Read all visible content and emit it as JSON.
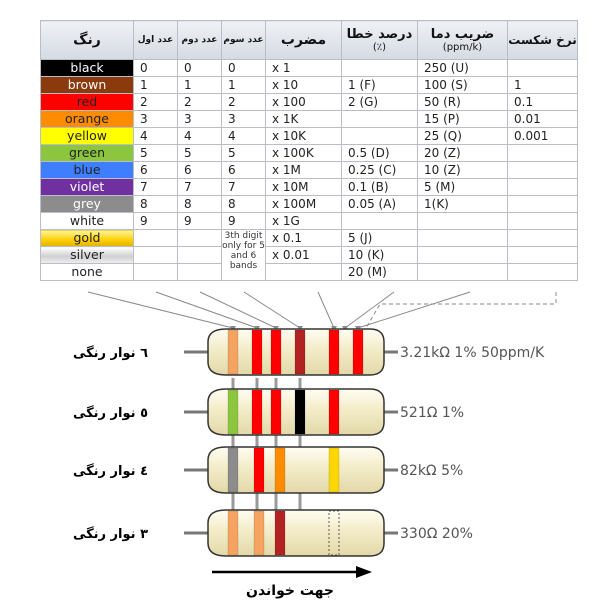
{
  "table": {
    "headers": {
      "color": "رنگ",
      "digit1": "عدد اول",
      "digit2": "عدد دوم",
      "digit3": "عدد سوم",
      "multiplier": "مضرب",
      "tolerance": "درصد خطا",
      "tolerance_unit": "(٪)",
      "tempco": "ضریب دما",
      "tempco_unit": "(ppm/k)",
      "failrate": "نرخ شکست"
    },
    "rows": [
      {
        "name": "black",
        "bg": "#000000",
        "fg": "#ffffff",
        "d1": "0",
        "d2": "0",
        "d3": "0",
        "mult": "x 1",
        "tol": "",
        "temp": "250 (U)",
        "fail": ""
      },
      {
        "name": "brown",
        "bg": "#8b3a0e",
        "fg": "#ffffff",
        "d1": "1",
        "d2": "1",
        "d3": "1",
        "mult": "x 10",
        "tol": "1 (F)",
        "temp": "100 (S)",
        "fail": "1"
      },
      {
        "name": "red",
        "bg": "#ff0000",
        "fg": "#222222",
        "d1": "2",
        "d2": "2",
        "d3": "2",
        "mult": "x 100",
        "tol": "2 (G)",
        "temp": "50 (R)",
        "fail": "0.1"
      },
      {
        "name": "orange",
        "bg": "#ff8c00",
        "fg": "#222222",
        "d1": "3",
        "d2": "3",
        "d3": "3",
        "mult": "x 1K",
        "tol": "",
        "temp": "15 (P)",
        "fail": "0.01"
      },
      {
        "name": "yellow",
        "bg": "#ffff00",
        "fg": "#222222",
        "d1": "4",
        "d2": "4",
        "d3": "4",
        "mult": "x 10K",
        "tol": "",
        "temp": "25 (Q)",
        "fail": "0.001"
      },
      {
        "name": "green",
        "bg": "#8cc63f",
        "fg": "#222222",
        "d1": "5",
        "d2": "5",
        "d3": "5",
        "mult": "x 100K",
        "tol": "0.5 (D)",
        "temp": "20 (Z)",
        "fail": ""
      },
      {
        "name": "blue",
        "bg": "#3f7fff",
        "fg": "#222222",
        "d1": "6",
        "d2": "6",
        "d3": "6",
        "mult": "x 1M",
        "tol": "0.25 (C)",
        "temp": "10 (Z)",
        "fail": ""
      },
      {
        "name": "violet",
        "bg": "#7030a0",
        "fg": "#ffffff",
        "d1": "7",
        "d2": "7",
        "d3": "7",
        "mult": "x 10M",
        "tol": "0.1 (B)",
        "temp": "5 (M)",
        "fail": ""
      },
      {
        "name": "grey",
        "bg": "#8c8c8c",
        "fg": "#ffffff",
        "d1": "8",
        "d2": "8",
        "d3": "8",
        "mult": "x 100M",
        "tol": "0.05 (A)",
        "temp": "1(K)",
        "fail": ""
      },
      {
        "name": "white",
        "bg": "#ffffff",
        "fg": "#222222",
        "d1": "9",
        "d2": "9",
        "d3": "9",
        "mult": "x 1G",
        "tol": "",
        "temp": "",
        "fail": ""
      },
      {
        "name": "gold",
        "bg": "#ffd700",
        "fg": "#222222",
        "d1": "",
        "d2": "",
        "d3": "",
        "mult": "x 0.1",
        "tol": "5 (J)",
        "temp": "",
        "fail": ""
      },
      {
        "name": "silver",
        "bg": "#dcdcdc",
        "fg": "#222222",
        "d1": "",
        "d2": "",
        "d3": "",
        "mult": "x 0.01",
        "tol": "10 (K)",
        "temp": "",
        "fail": ""
      },
      {
        "name": "none",
        "bg": "#ffffff",
        "fg": "#222222",
        "d1": "",
        "d2": "",
        "d3": "",
        "mult": "",
        "tol": "20 (M)",
        "temp": "",
        "fail": ""
      }
    ],
    "digit3_note": "3th digit only for 5 and 6 bands"
  },
  "resistors": [
    {
      "label": "٦ نوار رنگی",
      "value": "3.21kΩ 1% 50ppm/K",
      "bands": [
        "#f4a460",
        "#ff0000",
        "#ff0000",
        "#b22222",
        "#ff0000",
        "#ff0000"
      ]
    },
    {
      "label": "٥ نوار رنگی",
      "value": "521Ω 1%",
      "bands": [
        "#8cc63f",
        "#ff0000",
        "#ff0000",
        "#000000",
        "#ff0000"
      ]
    },
    {
      "label": "٤ نوار رنگی",
      "value": "82kΩ 5%",
      "bands": [
        "#8c8c8c",
        "#ff0000",
        "#ff8c00",
        "#ffd700"
      ]
    },
    {
      "label": "٣ نوار رنگی",
      "value": "330Ω 20%",
      "bands": [
        "#f4a460",
        "#f4a460",
        "#b22222"
      ]
    }
  ],
  "direction_label": "جهت خواندن"
}
